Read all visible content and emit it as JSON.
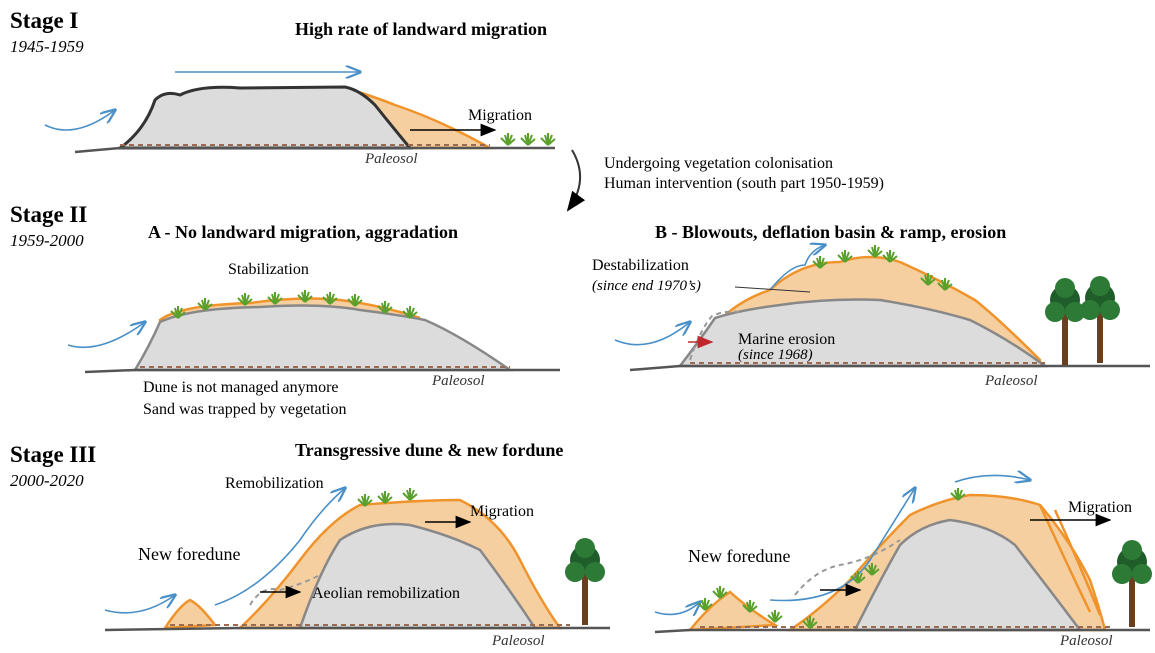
{
  "stage_1": {
    "title": "Stage I",
    "period": "1945-1959",
    "heading": "High rate of landward migration",
    "migration": "Migration",
    "paleosol": "Paleosol"
  },
  "transition": {
    "line_1": "Undergoing vegetation colonisation",
    "line_2": "Human intervention (south part 1950-1959)"
  },
  "stage_2": {
    "title": "Stage II",
    "period": "1959-2000",
    "panel_a": {
      "heading": "A - No landward migration, aggradation",
      "stabilization": "Stabilization",
      "note_1": "Dune is not managed anymore",
      "note_2": "Sand was trapped by vegetation",
      "paleosol": "Paleosol"
    },
    "panel_b": {
      "heading": "B - Blowouts, deflation basin & ramp, erosion",
      "destabilization": "Destabilization",
      "destabilization_date": "(since end 1970’s)",
      "marine_erosion": "Marine erosion",
      "marine_erosion_date": "(since 1968)",
      "paleosol": "Paleosol"
    }
  },
  "stage_3": {
    "title": "Stage III",
    "period": "2000-2020",
    "heading": "Transgressive dune & new fordune",
    "left": {
      "remobilization": "Remobilization",
      "migration": "Migration",
      "new_foredune": "New foredune",
      "aeolian": "Aeolian remobilization",
      "paleosol": "Paleosol"
    },
    "right": {
      "new_foredune": "New foredune",
      "migration": "Migration",
      "paleosol": "Paleosol"
    }
  }
}
